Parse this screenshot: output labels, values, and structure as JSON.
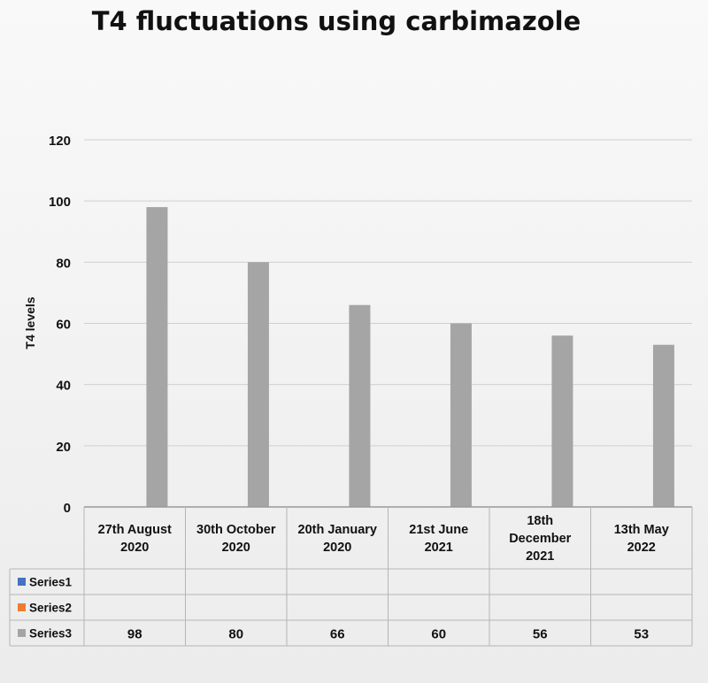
{
  "chart_data": {
    "type": "bar",
    "title": "T4 fluctuations using carbimazole",
    "xlabel": "",
    "ylabel": "T4  levels",
    "ylim": [
      0,
      120
    ],
    "yticks": [
      0,
      20,
      40,
      60,
      80,
      100,
      120
    ],
    "grid": true,
    "legend_placement": "data-table",
    "categories": [
      [
        "27th August",
        "2020"
      ],
      [
        "30th October",
        "2020"
      ],
      [
        "20th January",
        "2020"
      ],
      [
        "21st June",
        "2021"
      ],
      [
        "18th",
        "December",
        "2021"
      ],
      [
        "13th May",
        "2022"
      ]
    ],
    "series": [
      {
        "name": "Series1",
        "color": "#4472c4",
        "values": [
          null,
          null,
          null,
          null,
          null,
          null
        ]
      },
      {
        "name": "Series2",
        "color": "#ed7d31",
        "values": [
          null,
          null,
          null,
          null,
          null,
          null
        ]
      },
      {
        "name": "Series3",
        "color": "#a5a5a5",
        "values": [
          98,
          80,
          66,
          60,
          56,
          53
        ]
      }
    ]
  }
}
